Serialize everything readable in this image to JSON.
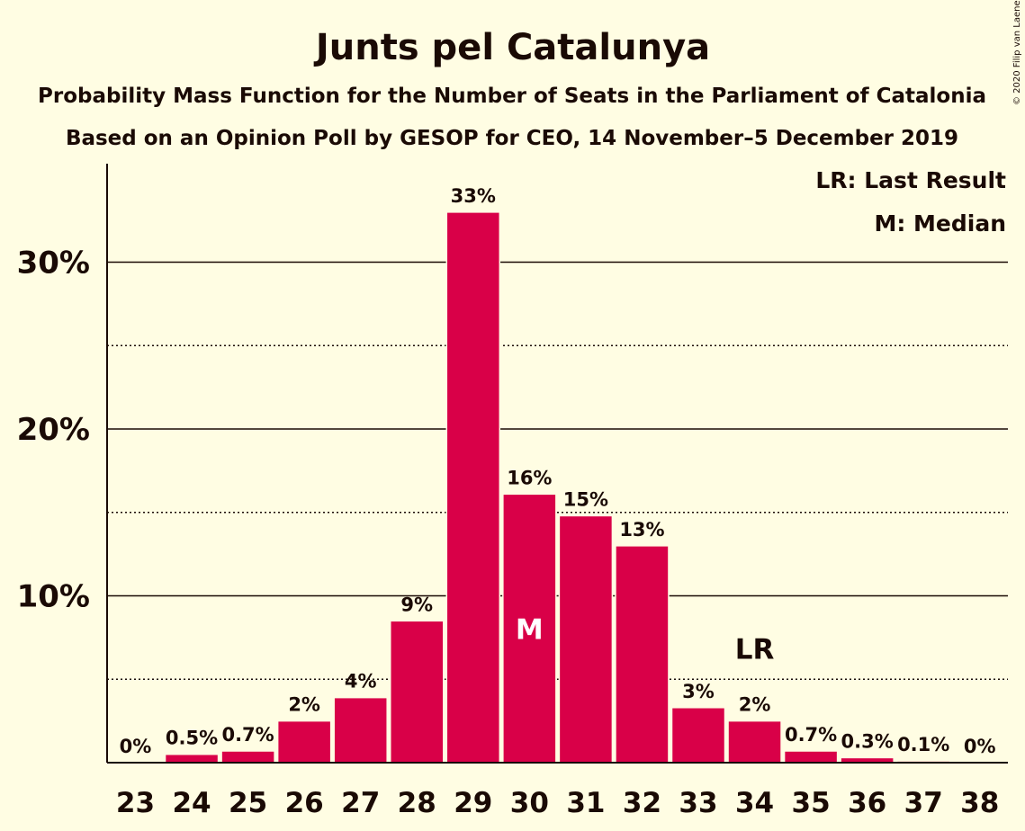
{
  "chart_data": {
    "type": "bar",
    "title": "Junts pel Catalunya",
    "subtitle_1": "Probability Mass Function for the Number of Seats in the Parliament of Catalonia",
    "subtitle_2": "Based on an Opinion Poll by GESOP for CEO, 14 November–5 December 2019",
    "copyright": "© 2020 Filip van Laenen",
    "legend": {
      "last_result": "LR: Last Result",
      "median": "M: Median",
      "placement": "top-right"
    },
    "categories": [
      "23",
      "24",
      "25",
      "26",
      "27",
      "28",
      "29",
      "30",
      "31",
      "32",
      "33",
      "34",
      "35",
      "36",
      "37",
      "38"
    ],
    "values": [
      0,
      0.5,
      0.7,
      2.5,
      3.9,
      8.5,
      33,
      16.1,
      14.8,
      13,
      3.3,
      2.5,
      0.7,
      0.3,
      0.1,
      0
    ],
    "data_labels": [
      "0%",
      "0.5%",
      "0.7%",
      "2%",
      "4%",
      "9%",
      "33%",
      "16%",
      "15%",
      "13%",
      "3%",
      "2%",
      "0.7%",
      "0.3%",
      "0.1%",
      "0%"
    ],
    "y_ticks": [
      {
        "value": 10,
        "label": "10%"
      },
      {
        "value": 20,
        "label": "20%"
      },
      {
        "value": 30,
        "label": "30%"
      }
    ],
    "minor_gridlines": [
      5,
      15,
      25
    ],
    "ylim": [
      0,
      36
    ],
    "median_category": "30",
    "median_marker": "M",
    "last_result_category": "34",
    "last_result_marker": "LR",
    "bar_color": "#d90048",
    "background": "#fffde3",
    "text_color": "#1a0a05"
  }
}
